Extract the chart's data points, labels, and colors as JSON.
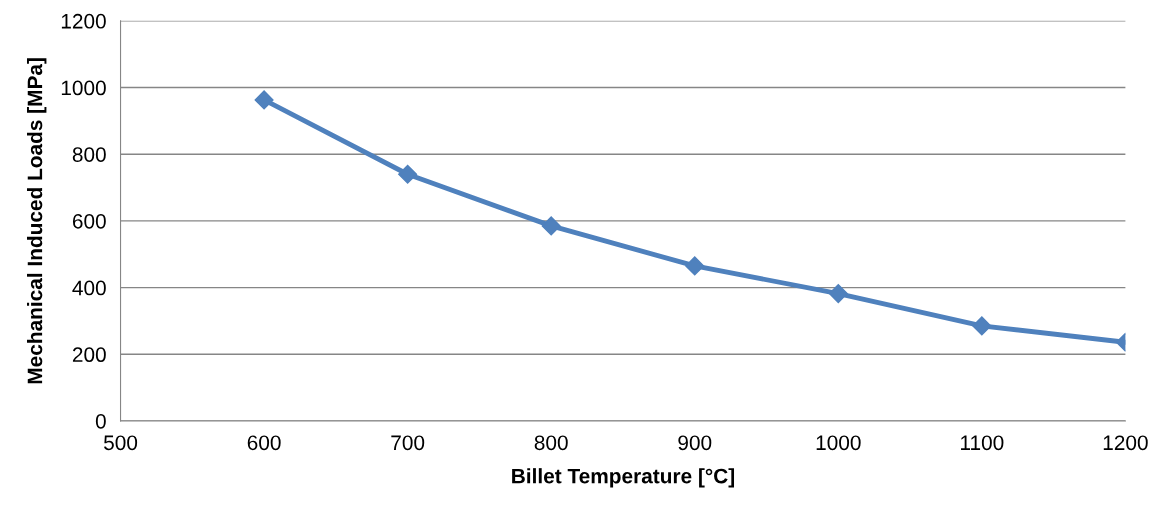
{
  "chart_data": {
    "type": "line",
    "xlabel": "Billet Temperature [°C]",
    "ylabel": "Mechanical Induced Loads [MPa]",
    "x": [
      600,
      700,
      800,
      900,
      1000,
      1100,
      1200
    ],
    "series": [
      {
        "color": "#4f81bd",
        "values": [
          963,
          740,
          585,
          465,
          382,
          285,
          236
        ]
      }
    ],
    "xlim": [
      500,
      1200
    ],
    "xticks": [
      500,
      600,
      700,
      800,
      900,
      1000,
      1100,
      1200
    ],
    "ylim": [
      0,
      1200
    ],
    "yticks": [
      0,
      200,
      400,
      600,
      800,
      1000,
      1200
    ],
    "grid": "y",
    "marker": "diamond",
    "line_style": "solid",
    "legend": false
  }
}
